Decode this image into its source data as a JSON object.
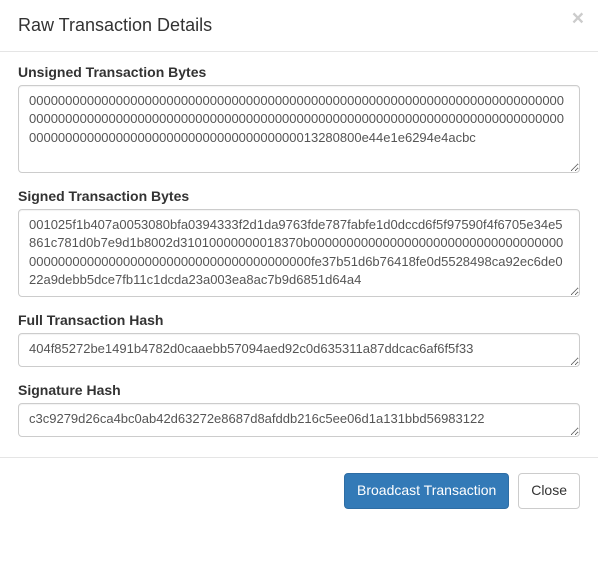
{
  "title": "Raw Transaction Details",
  "close_x_symbol": "×",
  "fields": {
    "unsigned_label": "Unsigned Transaction Bytes",
    "unsigned_value": "00000000000000000000000000000000000000000000000000000000000000000000000000000000000000000000000000000000000000000000000000000000000000000000000000000000000000000000000000000000000000000013280800e44e1e6294e4acbc",
    "signed_label": "Signed Transaction Bytes",
    "signed_value": "001025f1b407a0053080bfa0394333f2d1da9763fde787fabfe1d0dccd6f5f97590f4f6705e34e5861c781d0b7e9d1b8002d31010000000018370b00000000000000000000000000000000000000000000000000000000000000000000000000fe37b51d6b76418fe0d5528498ca92ec6de022a9debb5dce7fb11c1dcda23a003ea8ac7b9d6851d64a4",
    "fullhash_label": "Full Transaction Hash",
    "fullhash_value": "404f85272be1491b4782d0caaebb57094aed92c0d635311a87ddcac6af6f5f33",
    "sighash_label": "Signature Hash",
    "sighash_value": "c3c9279d26ca4bc0ab42d63272e8687d8afddb216c5ee06d1a131bbd56983122"
  },
  "footer": {
    "broadcast_label": "Broadcast Transaction",
    "close_label": "Close"
  },
  "colors": {
    "primary_bg": "#337ab7",
    "primary_border": "#2e6da4",
    "border": "#e5e5e5",
    "input_border": "#cccccc",
    "text": "#333333",
    "muted": "#555555"
  }
}
